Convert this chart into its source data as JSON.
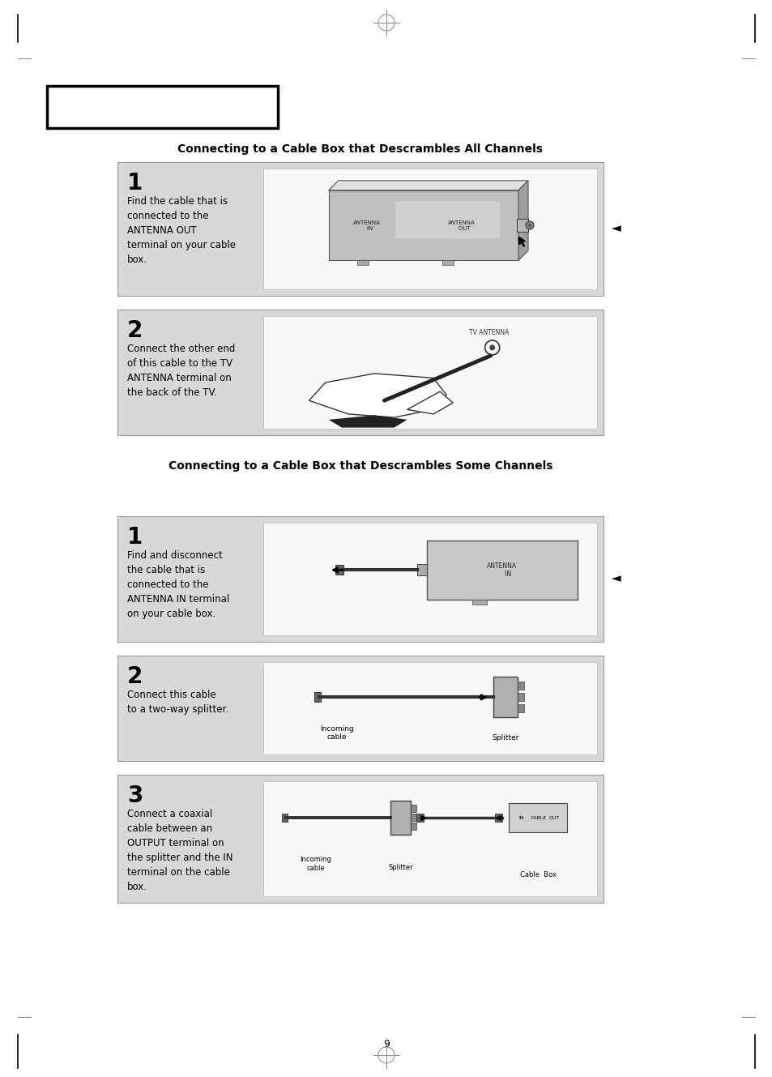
{
  "page_num": "9",
  "bg_color": "#ffffff",
  "title1": "Connecting to a Cable Box that Descrambles All Channels",
  "title2": "Connecting to a Cable Box that Descrambles Some Channels",
  "section1_steps": [
    {
      "num": "1",
      "text": "Find the cable that is\nconnected to the\nANTENNA OUT\nterminal on your cable\nbox."
    },
    {
      "num": "2",
      "text": "Connect the other end\nof this cable to the TV\nANTENNA terminal on\nthe back of the TV."
    }
  ],
  "section2_steps": [
    {
      "num": "1",
      "text": "Find and disconnect\nthe cable that is\nconnected to the\nANTENNA IN terminal\non your cable box."
    },
    {
      "num": "2",
      "text": "Connect this cable\nto a two-way splitter."
    },
    {
      "num": "3",
      "text": "Connect a coaxial\ncable between an\nOUTPUT terminal on\nthe splitter and the IN\nterminal on the cable\nbox."
    }
  ],
  "box_outer_color": "#cccccc",
  "box_inner_color": "#f0f0f0",
  "title_fontsize": 10,
  "step_num_fontsize": 20,
  "step_text_fontsize": 8.5
}
